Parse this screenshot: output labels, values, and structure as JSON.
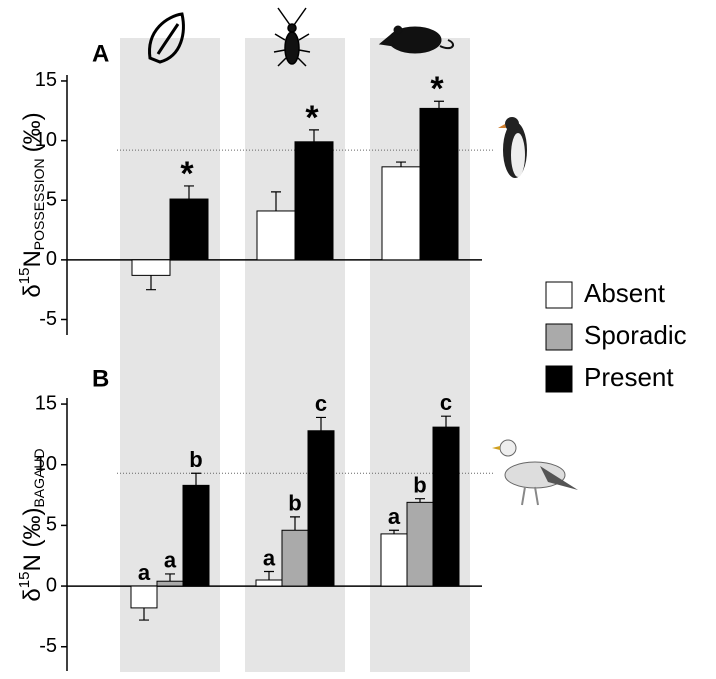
{
  "chart_data": [
    {
      "type": "bar",
      "panel_label": "A",
      "y_label": {
        "prefix": "δ",
        "sup": "15",
        "main": "N",
        "sub": "POSSESSION",
        "suffix": "(‰)"
      },
      "categories": [
        null,
        null,
        null
      ],
      "series": [
        {
          "name": "Absent",
          "color": "#ffffff",
          "values": [
            -1.3,
            4.1,
            7.8
          ],
          "errors": [
            1.2,
            1.6,
            0.4
          ]
        },
        {
          "name": "Present",
          "color": "#000000",
          "values": [
            5.1,
            9.9,
            12.7
          ],
          "errors": [
            1.1,
            1.0,
            0.6
          ]
        }
      ],
      "annotations": [
        "*",
        "*",
        "*"
      ],
      "reference_line": 9.2,
      "ylim": [
        -6.3,
        15.5
      ],
      "yticks": [
        -5,
        0,
        5,
        10,
        15
      ]
    },
    {
      "type": "bar",
      "panel_label": "B",
      "y_label": {
        "prefix": "δ",
        "sup": "15",
        "main": "N (‰)",
        "sub": "BAGAUD",
        "suffix": ""
      },
      "categories": [
        null,
        null,
        null
      ],
      "series": [
        {
          "name": "Absent",
          "color": "#ffffff",
          "values": [
            -1.8,
            0.5,
            4.3
          ],
          "errors": [
            1.0,
            0.7,
            0.3
          ],
          "letters": [
            "a",
            "a",
            "a"
          ]
        },
        {
          "name": "Sporadic",
          "color": "#aaaaaa",
          "values": [
            0.4,
            4.6,
            6.9
          ],
          "errors": [
            0.6,
            1.1,
            0.3
          ],
          "letters": [
            "a",
            "b",
            "b"
          ]
        },
        {
          "name": "Present",
          "color": "#000000",
          "values": [
            8.3,
            12.8,
            13.1
          ],
          "errors": [
            1.0,
            1.1,
            0.9
          ],
          "letters": [
            "b",
            "c",
            "c"
          ]
        }
      ],
      "reference_line": 9.3,
      "ylim": [
        -7,
        15.5
      ],
      "yticks": [
        -5,
        0,
        5,
        10,
        15
      ]
    }
  ]
}
